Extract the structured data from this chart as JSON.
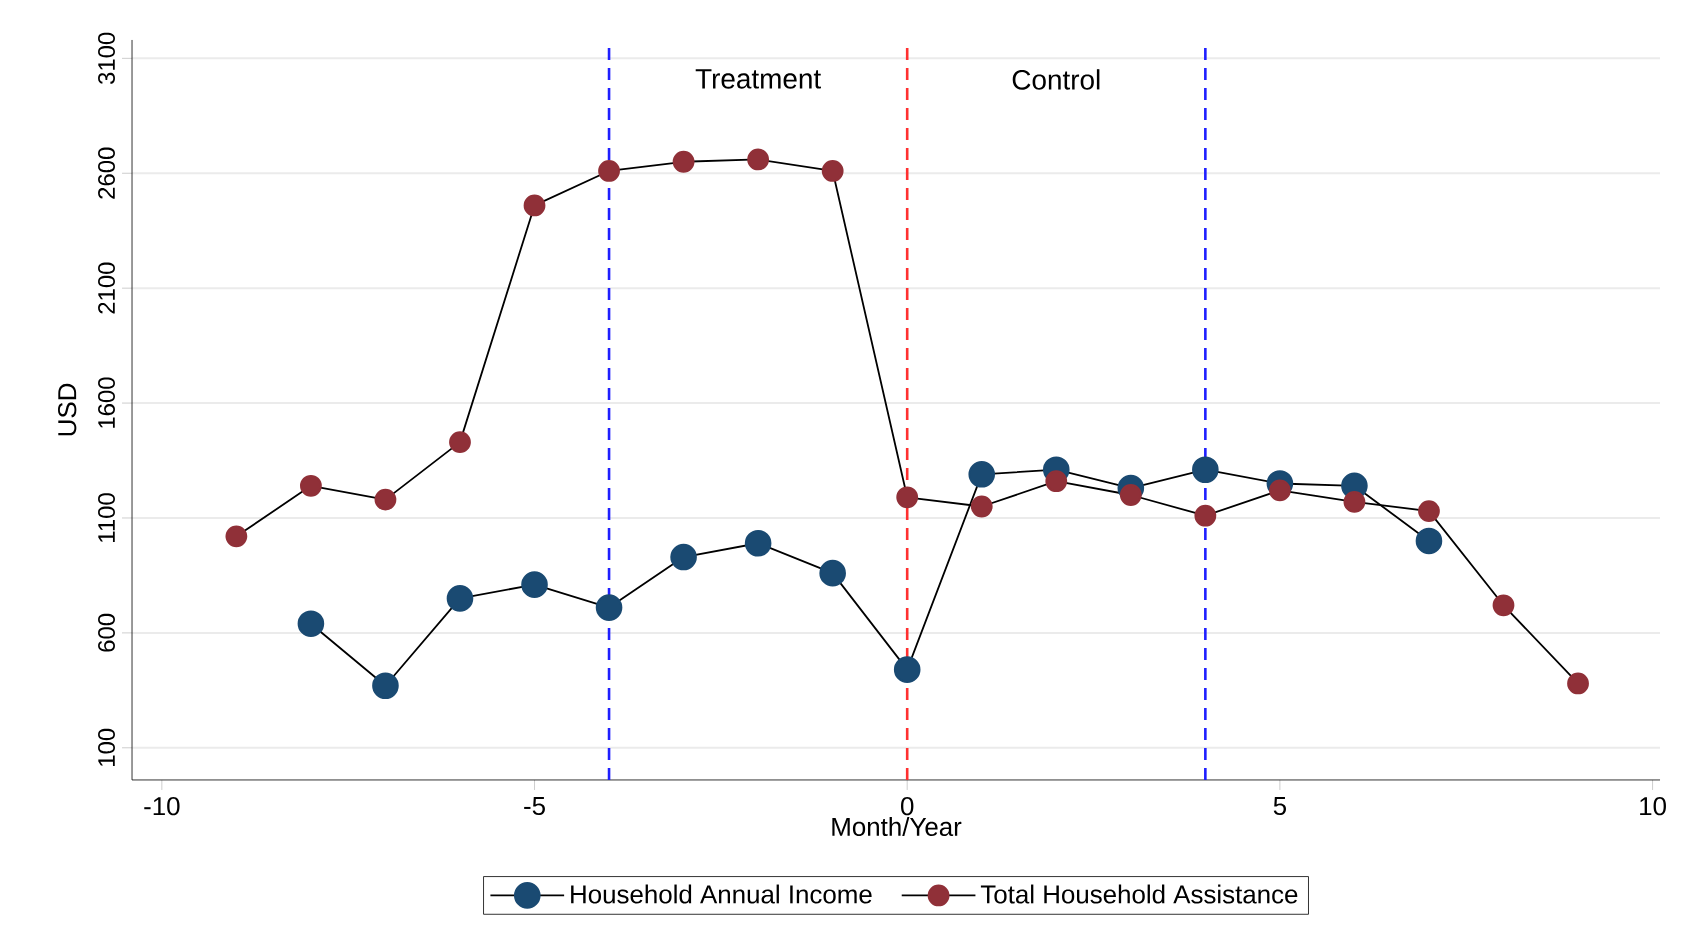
{
  "chart_data": {
    "type": "line",
    "xlabel": "Month/Year",
    "ylabel": "USD",
    "xlim": [
      -10.4,
      10.1
    ],
    "ylim": [
      -40,
      3180
    ],
    "xticks": [
      -10,
      -5,
      0,
      5,
      10
    ],
    "yticks": [
      100,
      600,
      1100,
      1600,
      2100,
      2600,
      3100
    ],
    "grid": "y",
    "legend": "bottom",
    "marker": "circle",
    "line_style": "solid",
    "series": [
      {
        "name": "Household Annual Income",
        "color": "#1a4a72",
        "x": [
          -8,
          -7,
          -6,
          -5,
          -4,
          -3,
          -2,
          -1,
          0,
          1,
          2,
          3,
          4,
          5,
          6,
          7
        ],
        "values": [
          640,
          370,
          750,
          810,
          710,
          930,
          990,
          860,
          440,
          1290,
          1310,
          1230,
          1310,
          1250,
          1240,
          1000
        ]
      },
      {
        "name": "Total Household Assistance",
        "color": "#903038",
        "x": [
          -9,
          -8,
          -7,
          -6,
          -5,
          -4,
          -3,
          -2,
          -1,
          0,
          1,
          2,
          3,
          4,
          5,
          6,
          7,
          8,
          9
        ],
        "values": [
          1020,
          1240,
          1180,
          1430,
          2460,
          2610,
          2650,
          2660,
          2610,
          1190,
          1150,
          1260,
          1200,
          1110,
          1220,
          1170,
          1130,
          720,
          380
        ]
      }
    ],
    "ref_lines": [
      {
        "axis": "x",
        "value": -4,
        "color": "#1f1fff",
        "line_style": "dashed"
      },
      {
        "axis": "x",
        "value": 0,
        "color": "#ff3030",
        "line_style": "dashed"
      },
      {
        "axis": "x",
        "value": 4,
        "color": "#1f1fff",
        "line_style": "dashed"
      }
    ],
    "annotations": [
      "Treatment",
      "Control"
    ]
  }
}
